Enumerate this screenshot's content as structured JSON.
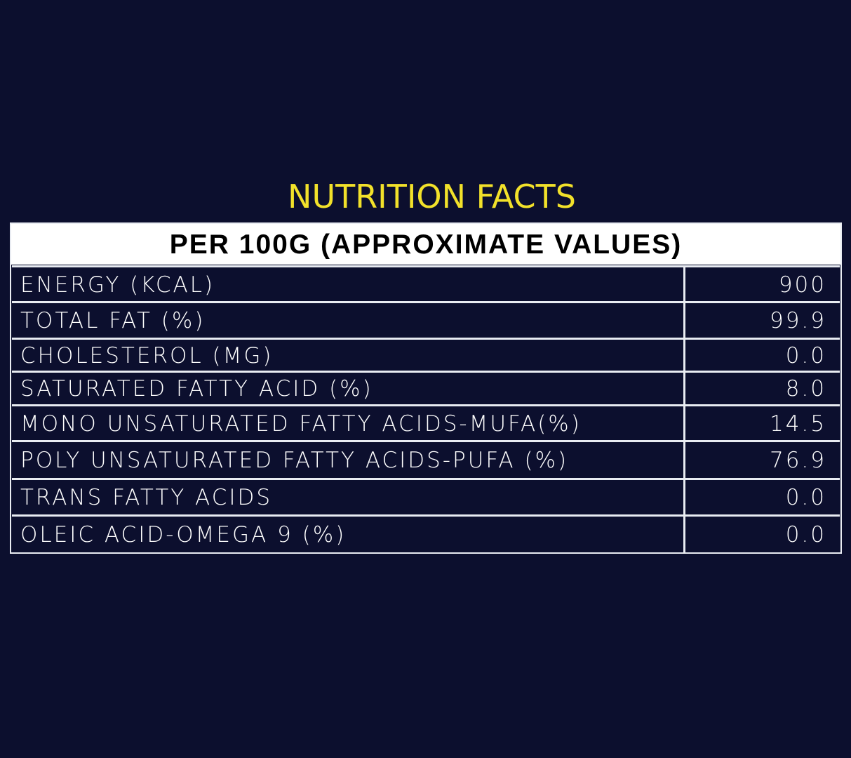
{
  "title": "NUTRITION FACTS",
  "header": "PER 100G (APPROXIMATE VALUES)",
  "rows": [
    {
      "label": "ENERGY (KCAL)",
      "value": "900"
    },
    {
      "label": "TOTAL FAT (%)",
      "value": "99.9"
    },
    {
      "label": "CHOLESTEROL (MG)",
      "value": "0.0"
    },
    {
      "label": "SATURATED FATTY ACID (%)",
      "value": "8.0"
    },
    {
      "label": "MONO UNSATURATED FATTY ACIDS-MUFA(%)",
      "value": "14.5"
    },
    {
      "label": "POLY UNSATURATED FATTY ACIDS-PUFA (%)",
      "value": "76.9"
    },
    {
      "label": "TRANS FATTY ACIDS",
      "value": "0.0"
    },
    {
      "label": "OLEIC ACID-OMEGA 9 (%)",
      "value": "0.0"
    }
  ],
  "colors": {
    "background": "#0c0f2e",
    "title": "#f2e12a",
    "border": "#e9ecf2",
    "header_bg": "#ffffff",
    "header_text": "#000000",
    "cell_text": "#ffffff"
  }
}
